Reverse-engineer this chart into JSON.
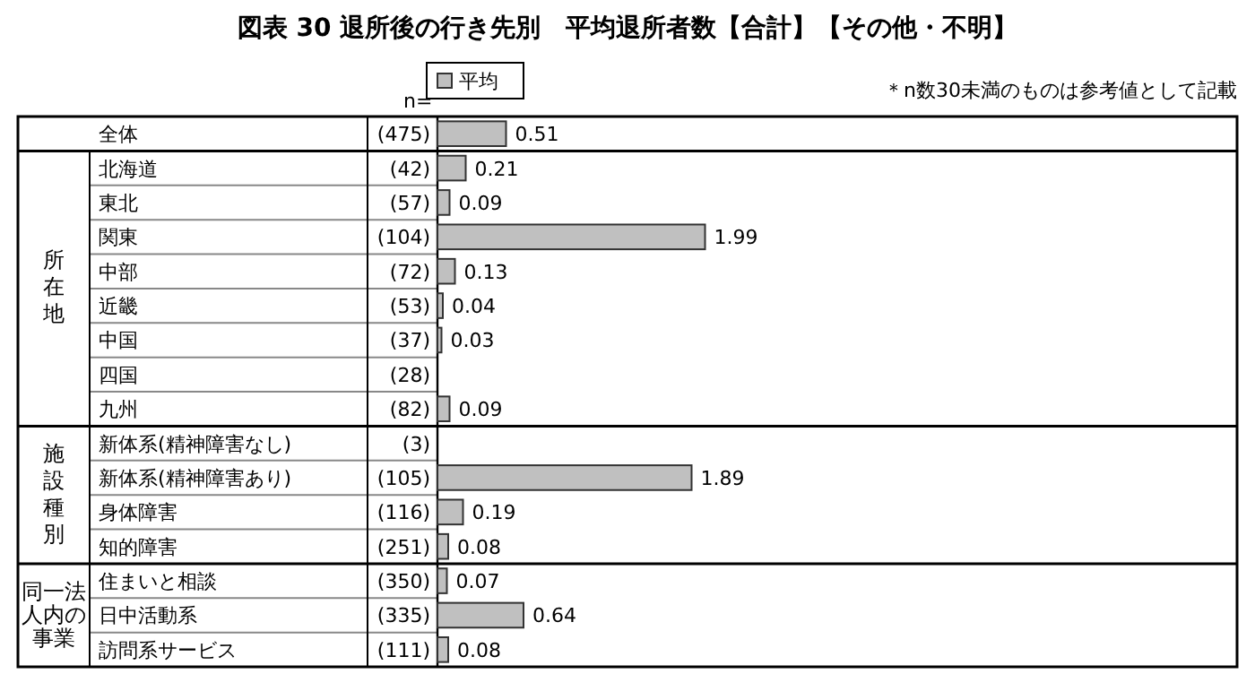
{
  "chart_data": {
    "type": "bar",
    "orientation": "horizontal",
    "title": "図表 30 退所後の行き先別　平均退所者数【合計】【その他・不明】",
    "categories": [
      "全体",
      "北海道",
      "東北",
      "関東",
      "中部",
      "近畿",
      "中国",
      "四国",
      "九州",
      "新体系(精神障害なし)",
      "新体系(精神障害あり)",
      "身体障害",
      "知的障害",
      "住まいと相談",
      "日中活動系",
      "訪問系サービス"
    ],
    "series": [
      {
        "name": "平均",
        "color": "#c0c0c0",
        "values": [
          0.51,
          0.21,
          0.09,
          1.99,
          0.13,
          0.04,
          0.03,
          null,
          0.09,
          null,
          1.89,
          0.19,
          0.08,
          0.07,
          0.64,
          0.08
        ]
      }
    ],
    "data_labels": true,
    "legend": "top",
    "annotations": [
      "n=",
      "所在地",
      "施設種別",
      "同一法人内の事業",
      "＊n数30未満のものは参考値として記載",
      "(475)",
      "(42)",
      "(57)",
      "(104)",
      "(72)",
      "(53)",
      "(37)",
      "(28)",
      "(82)",
      "(3)",
      "(105)",
      "(116)",
      "(251)",
      "(350)",
      "(335)",
      "(111)"
    ]
  }
}
